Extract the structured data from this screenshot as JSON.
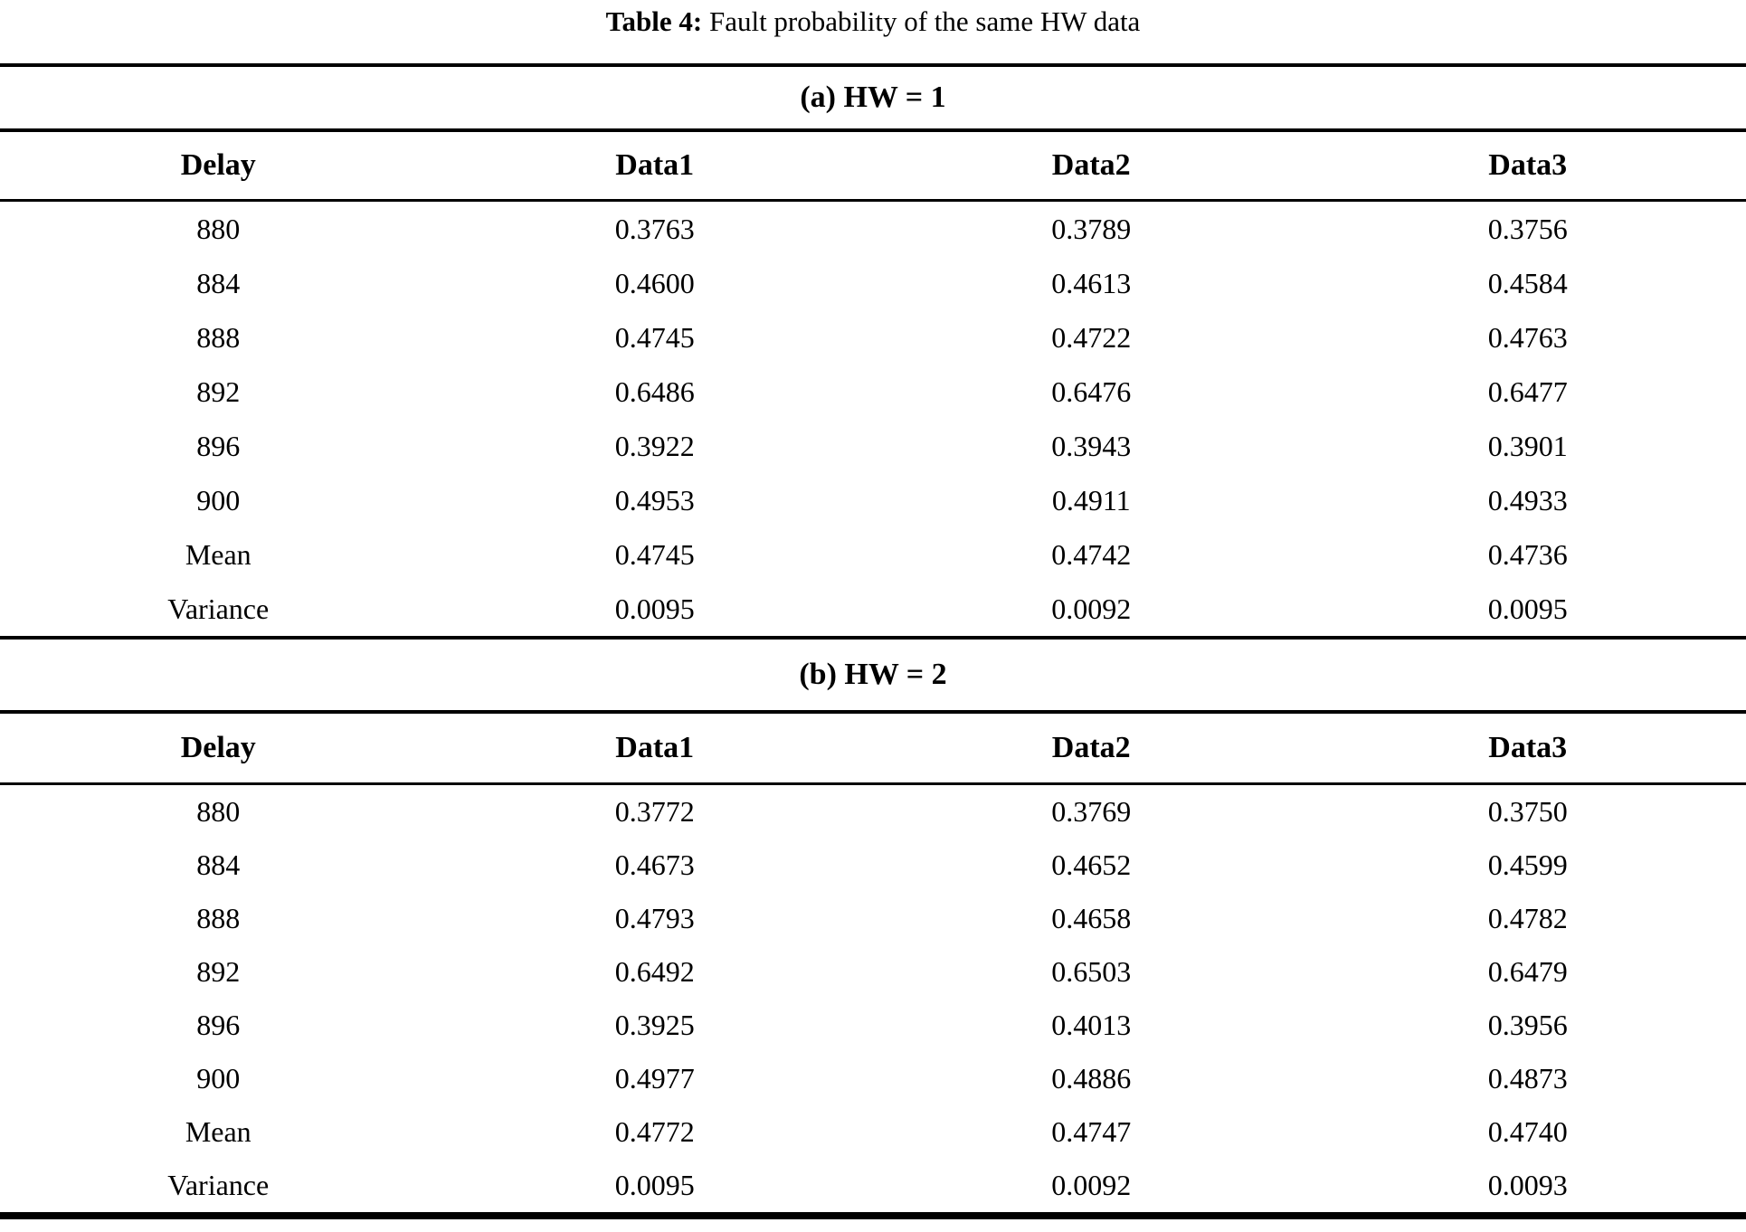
{
  "caption": {
    "label": "Table 4:",
    "text": " Fault probability of the same HW data"
  },
  "columns": [
    "Delay",
    "Data1",
    "Data2",
    "Data3"
  ],
  "sections": [
    {
      "heading": "(a) HW = 1",
      "rows": [
        [
          "880",
          "0.3763",
          "0.3789",
          "0.3756"
        ],
        [
          "884",
          "0.4600",
          "0.4613",
          "0.4584"
        ],
        [
          "888",
          "0.4745",
          "0.4722",
          "0.4763"
        ],
        [
          "892",
          "0.6486",
          "0.6476",
          "0.6477"
        ],
        [
          "896",
          "0.3922",
          "0.3943",
          "0.3901"
        ],
        [
          "900",
          "0.4953",
          "0.4911",
          "0.4933"
        ],
        [
          "Mean",
          "0.4745",
          "0.4742",
          "0.4736"
        ],
        [
          "Variance",
          "0.0095",
          "0.0092",
          "0.0095"
        ]
      ]
    },
    {
      "heading": "(b) HW = 2",
      "rows": [
        [
          "880",
          "0.3772",
          "0.3769",
          "0.3750"
        ],
        [
          "884",
          "0.4673",
          "0.4652",
          "0.4599"
        ],
        [
          "888",
          "0.4793",
          "0.4658",
          "0.4782"
        ],
        [
          "892",
          "0.6492",
          "0.6503",
          "0.6479"
        ],
        [
          "896",
          "0.3925",
          "0.4013",
          "0.3956"
        ],
        [
          "900",
          "0.4977",
          "0.4886",
          "0.4873"
        ],
        [
          "Mean",
          "0.4772",
          "0.4747",
          "0.4740"
        ],
        [
          "Variance",
          "0.0095",
          "0.0092",
          "0.0093"
        ]
      ]
    }
  ]
}
